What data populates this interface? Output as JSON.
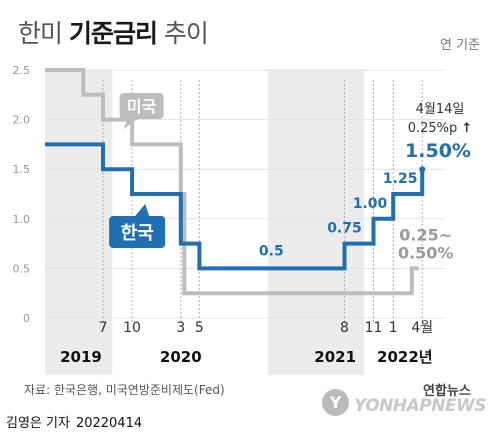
{
  "header": {
    "title_light": "한미 ",
    "title_bold": "기준금리",
    "title_light2": " 추이",
    "unit": "연 기준"
  },
  "chart_data": {
    "type": "line",
    "ylim": [
      0,
      2.5
    ],
    "yticks": [
      "0",
      "0.5",
      "1.0",
      "1.5",
      "2.0",
      "2.5"
    ],
    "y_tick_values": [
      0,
      0.5,
      1.0,
      1.5,
      2.0,
      2.5
    ],
    "xlim": [
      2019.0,
      2022.36
    ],
    "x_month_ticks": [
      {
        "label": "7",
        "x": 2019.5
      },
      {
        "label": "10",
        "x": 2019.75
      },
      {
        "label": "3",
        "x": 2020.17
      },
      {
        "label": "5",
        "x": 2020.33
      },
      {
        "label": "8",
        "x": 2021.58
      },
      {
        "label": "11",
        "x": 2021.83
      },
      {
        "label": "1",
        "x": 2022.0
      },
      {
        "label": "4월",
        "x": 2022.25
      }
    ],
    "x_year_labels": [
      {
        "label": "2019",
        "x": 2019.31,
        "band": [
          2019.0,
          2019.58
        ]
      },
      {
        "label": "2020",
        "x": 2020.17,
        "band": null
      },
      {
        "label": "2021",
        "x": 2021.5,
        "band": [
          2020.92,
          2021.75
        ]
      },
      {
        "label": "2022년",
        "x": 2022.1,
        "band": null
      }
    ],
    "series": [
      {
        "name": "미국",
        "color": "#bdbdbd",
        "points": [
          [
            2019.0,
            2.5
          ],
          [
            2019.33,
            2.5
          ],
          [
            2019.33,
            2.25
          ],
          [
            2019.5,
            2.25
          ],
          [
            2019.5,
            2.0
          ],
          [
            2019.75,
            2.0
          ],
          [
            2019.75,
            1.75
          ],
          [
            2020.17,
            1.75
          ],
          [
            2020.17,
            1.25
          ],
          [
            2020.2,
            1.25
          ],
          [
            2020.2,
            0.25
          ],
          [
            2022.16,
            0.25
          ],
          [
            2022.16,
            0.5
          ],
          [
            2022.22,
            0.5
          ]
        ]
      },
      {
        "name": "한국",
        "color": "#1f6fb2",
        "points": [
          [
            2019.0,
            1.75
          ],
          [
            2019.5,
            1.75
          ],
          [
            2019.5,
            1.5
          ],
          [
            2019.75,
            1.5
          ],
          [
            2019.75,
            1.25
          ],
          [
            2020.17,
            1.25
          ],
          [
            2020.17,
            0.75
          ],
          [
            2020.33,
            0.75
          ],
          [
            2020.33,
            0.5
          ],
          [
            2021.58,
            0.5
          ],
          [
            2021.58,
            0.75
          ],
          [
            2021.83,
            0.75
          ],
          [
            2021.83,
            1.0
          ],
          [
            2022.0,
            1.0
          ],
          [
            2022.0,
            1.25
          ],
          [
            2022.25,
            1.25
          ],
          [
            2022.25,
            1.5
          ]
        ]
      }
    ],
    "labels": [
      {
        "text": "0.5",
        "x": 2020.95,
        "y": 0.63,
        "color": "#1f6fb2",
        "size": 14
      },
      {
        "text": "0.75",
        "x": 2021.58,
        "y": 0.86,
        "color": "#1f6fb2",
        "size": 14
      },
      {
        "text": "1.00",
        "x": 2021.8,
        "y": 1.11,
        "color": "#1f6fb2",
        "size": 14
      },
      {
        "text": "1.25",
        "x": 2022.06,
        "y": 1.36,
        "color": "#1f6fb2",
        "size": 14
      },
      {
        "text": "0.25~",
        "x": 2022.28,
        "y": 0.78,
        "color": "#9a9a9a",
        "size": 16
      },
      {
        "text": "0.50%",
        "x": 2022.28,
        "y": 0.6,
        "color": "#9a9a9a",
        "size": 16
      }
    ],
    "annotation": {
      "date": "4월14일",
      "change": "0.25%p",
      "arrow": "↑",
      "value": "1.50%",
      "value_color": "#1f6fb2"
    },
    "tag_us": "미국",
    "tag_kr": "한국"
  },
  "footer": {
    "source": "자료: 한국은행, 미국연방준비제도(Fed)",
    "reporter_name": "김영은 기자",
    "reporter_date": "20220414",
    "logo_kr": "연합뉴스",
    "logo_en": "YONHAPNEWS"
  }
}
